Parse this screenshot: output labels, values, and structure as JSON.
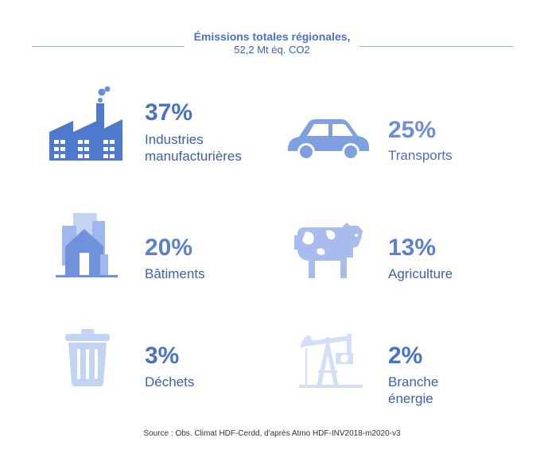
{
  "header": {
    "title": "Émissions totales régionales,",
    "subtitle": "52,2 Mt éq. CO2"
  },
  "chart_data": {
    "type": "table",
    "title": "Émissions totales régionales,",
    "subtitle": "52,2 Mt éq. CO2",
    "categories": [
      "Industries manufacturières",
      "Transports",
      "Bâtiments",
      "Agriculture",
      "Déchets",
      "Branche énergie"
    ],
    "values": [
      37,
      25,
      20,
      13,
      3,
      2
    ],
    "unit": "%",
    "items": [
      {
        "pct_label": "37%",
        "label_lines": [
          "Industries",
          "manufacturières"
        ],
        "icon": "factory-icon",
        "color": "#4a72c4",
        "label_color": "#3e5fa8"
      },
      {
        "pct_label": "25%",
        "label_lines": [
          "Transports"
        ],
        "icon": "car-icon",
        "color": "#6b8fd6",
        "label_color": "#4e6db5"
      },
      {
        "pct_label": "20%",
        "label_lines": [
          "Bâtiments"
        ],
        "icon": "buildings-icon",
        "color": "#5d7fcc",
        "label_color": "#3e5fa8"
      },
      {
        "pct_label": "13%",
        "label_lines": [
          "Agriculture"
        ],
        "icon": "cow-icon",
        "color": "#5d7fcc",
        "label_color": "#3e5fa8"
      },
      {
        "pct_label": "3%",
        "label_lines": [
          "Déchets"
        ],
        "icon": "trash-bin-icon",
        "color": "#4a72c4",
        "label_color": "#3e5fa8"
      },
      {
        "pct_label": "2%",
        "label_lines": [
          "Branche énergie"
        ],
        "icon": "oil-pump-icon",
        "color": "#4a72c4",
        "label_color": "#3e5fa8"
      }
    ]
  },
  "colors": {
    "icon_dark": "#4f79cc",
    "icon_mid": "#7e9fe0",
    "icon_light": "#c3d3f2",
    "rule": "#8fb0e0"
  },
  "footer": {
    "source": "Source : Obs. Climat HDF-Cerdd, d'après Atmo HDF-INV2018-m2020-v3"
  }
}
